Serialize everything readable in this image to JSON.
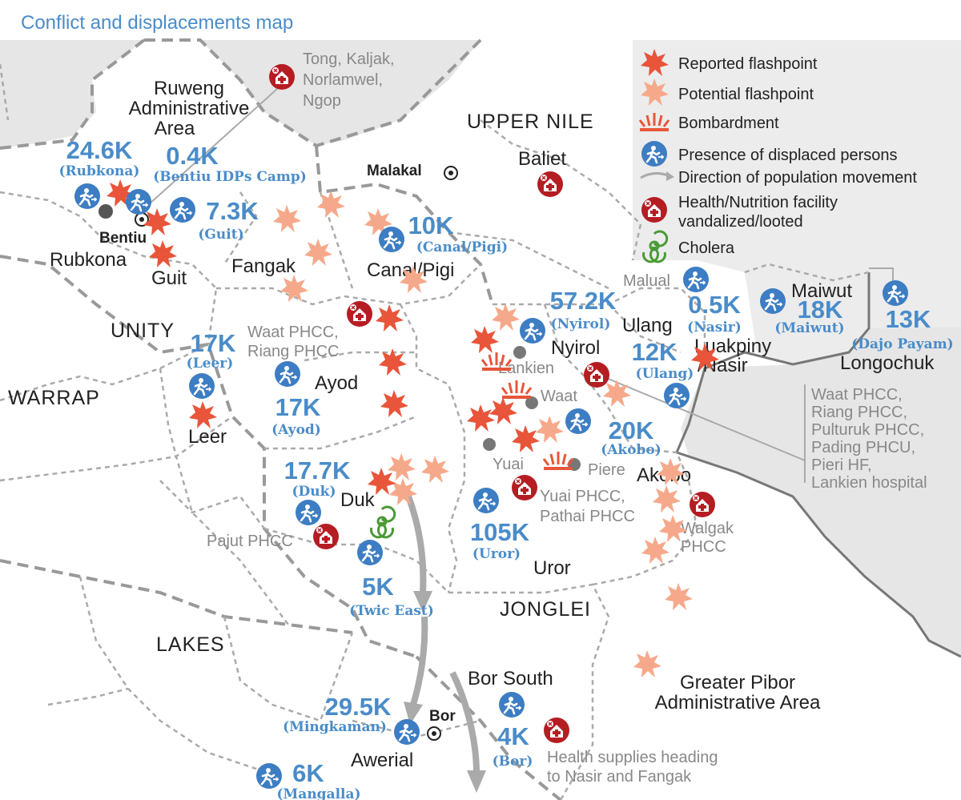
{
  "title": "Conflict and displacements map",
  "legend": {
    "reported_flashpoint": "Reported flashpoint",
    "potential_flashpoint": "Potential flashpoint",
    "bombardment": "Bombardment",
    "displaced": "Presence of displaced persons",
    "direction": "Direction of population movement",
    "health_line1": "Health/Nutrition facility",
    "health_line2": "vandalized/looted",
    "cholera": "Cholera"
  },
  "colors": {
    "reported": "#e8553a",
    "potential": "#f6a98a",
    "displaced": "#3d7dc3",
    "health": "#b51d23",
    "cholera": "#4a9a35",
    "text_blue": "#4a8cc9",
    "neighbor": "#e6e6e6"
  },
  "icons": {
    "reported": "red-star-burst",
    "potential": "salmon-star-burst",
    "bombardment": "explosion",
    "displaced": "running-person-circle",
    "direction": "grey-curved-arrow",
    "health": "hospital-cross-circle",
    "cholera": "biohazard"
  },
  "states": {
    "ruweng1": "Ruweng",
    "ruweng2": "Administrative",
    "ruweng3": "Area",
    "upper_nile": "UPPER NILE",
    "unity": "UNITY",
    "warrap": "WARRAP",
    "lakes": "LAKES",
    "jonglei": "JONGLEI",
    "pibor1": "Greater Pibor",
    "pibor2": "Administrative Area"
  },
  "towns": {
    "bentiu": "Bentiu",
    "malakal": "Malakal",
    "bor": "Bor"
  },
  "counties": {
    "rubkona": "Rubkona",
    "guit": "Guit",
    "fangak": "Fangak",
    "canal": "Canal/Pigi",
    "baliet": "Baliet",
    "leer": "Leer",
    "ayod": "Ayod",
    "duk": "Duk",
    "nyirol": "Nyirol",
    "ulang": "Ulang",
    "maiwut": "Maiwut",
    "luakpiny": "Luakpiny",
    "nasir": "/Nasir",
    "longochuk": "Longochuk",
    "akobo": "Akobo",
    "uror": "Uror",
    "bor_south": "Bor South",
    "awerial": "Awerial"
  },
  "places": {
    "lankien": "Lankien",
    "waat": "Waat",
    "yuai": "Yuai",
    "piere": "Piere",
    "malual": "Malual"
  },
  "facilities": {
    "tong": [
      "Tong, Kaljak,",
      "Norlamwel,",
      "Ngop"
    ],
    "waat_riang": [
      "Waat PHCC,",
      "Riang PHCC"
    ],
    "list_right": [
      "Waat PHCC,",
      "Riang PHCC,",
      "Pulturuk PHCC,",
      "Pading PHCU,",
      "Pieri  HF,",
      "Lankien hospital"
    ],
    "yuai": [
      "Yuai PHCC,",
      "Pathai PHCC"
    ],
    "walgak": [
      "Walgak",
      "PHCC"
    ],
    "pajut": "Pajut PHCC",
    "supplies": [
      "Health supplies heading",
      "to Nasir and Fangak"
    ]
  },
  "displacements": [
    {
      "value": "24.6K",
      "area": "(Rubkona)"
    },
    {
      "value": "0.4K",
      "area": "(Bentiu IDPs Camp)"
    },
    {
      "value": "7.3K",
      "area": "(Guit)"
    },
    {
      "value": "10K",
      "area": "(Canal/Pigi)"
    },
    {
      "value": "57.2K",
      "area": "(Nyirol)"
    },
    {
      "value": "0.5K",
      "area": "(Nasir)"
    },
    {
      "value": "18K",
      "area": "(Maiwut)"
    },
    {
      "value": "13K",
      "area": "(Dajo Payam)"
    },
    {
      "value": "12K",
      "area": "(Ulang)"
    },
    {
      "value": "17K",
      "area": "(Leer)"
    },
    {
      "value": "17K",
      "area": "(Ayod)"
    },
    {
      "value": "20K",
      "area": "(Akobo)"
    },
    {
      "value": "17.7K",
      "area": "(Duk)"
    },
    {
      "value": "105K",
      "area": "(Uror)"
    },
    {
      "value": "5K",
      "area": "(Twic East)"
    },
    {
      "value": "29.5K",
      "area": "(Mingkaman)"
    },
    {
      "value": "4K",
      "area": "(Bor)"
    },
    {
      "value": "6K",
      "area": "(Mangalla)"
    }
  ]
}
